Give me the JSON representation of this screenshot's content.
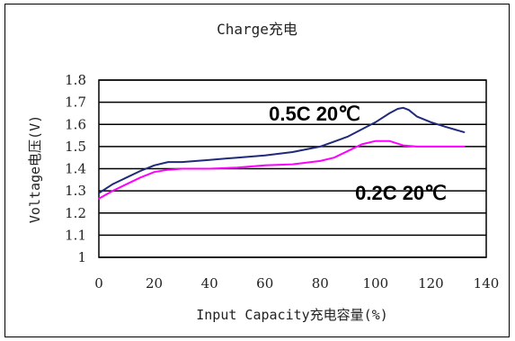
{
  "chart_data": {
    "type": "line",
    "title": "Charge充电",
    "xlabel": "Input Capacity充电容量(%)",
    "ylabel": "Voltage电压(V)",
    "xlim": [
      0,
      140
    ],
    "ylim": [
      1.0,
      1.8
    ],
    "xticks": [
      "0",
      "20",
      "40",
      "60",
      "80",
      "100",
      "120",
      "140"
    ],
    "yticks": [
      "1",
      "1.1",
      "1.2",
      "1.3",
      "1.4",
      "1.5",
      "1.6",
      "1.7",
      "1.8"
    ],
    "grid": "horizontal",
    "series": [
      {
        "name": "0.5C 20℃",
        "color": "#1f2a7a",
        "x": [
          0,
          5,
          10,
          15,
          20,
          25,
          30,
          40,
          50,
          60,
          70,
          80,
          90,
          100,
          105,
          108,
          110,
          112,
          115,
          120,
          125,
          132
        ],
        "y": [
          1.29,
          1.33,
          1.36,
          1.39,
          1.415,
          1.43,
          1.43,
          1.44,
          1.45,
          1.46,
          1.475,
          1.5,
          1.545,
          1.61,
          1.65,
          1.67,
          1.675,
          1.665,
          1.635,
          1.61,
          1.59,
          1.565
        ]
      },
      {
        "name": "0.2C 20℃",
        "color": "#ff00ff",
        "x": [
          0,
          5,
          10,
          15,
          20,
          25,
          30,
          40,
          50,
          60,
          70,
          80,
          85,
          90,
          95,
          100,
          105,
          110,
          115,
          120,
          132
        ],
        "y": [
          1.265,
          1.3,
          1.33,
          1.36,
          1.385,
          1.395,
          1.4,
          1.4,
          1.405,
          1.415,
          1.42,
          1.435,
          1.45,
          1.48,
          1.51,
          1.525,
          1.525,
          1.505,
          1.5,
          1.5,
          1.5
        ]
      }
    ],
    "annotations": [
      "0.5C 20℃",
      "0.2C 20℃"
    ]
  }
}
